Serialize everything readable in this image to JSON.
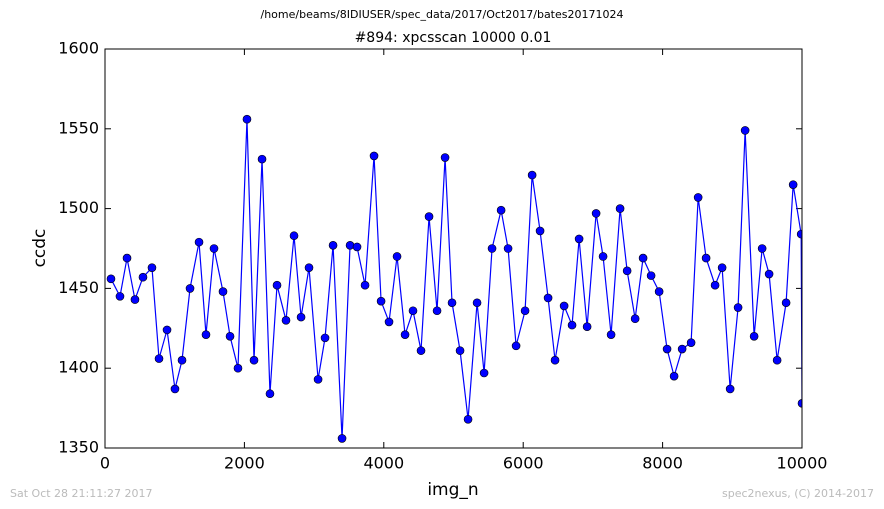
{
  "chart_data": {
    "type": "line",
    "title": "/home/beams/8IDIUSER/spec_data/2017/Oct2017/bates20171024",
    "subtitle": "#894: xpcsscan 10000 0.01",
    "x_label": "img_n",
    "y_label": "ccdc",
    "footer_left": "Sat Oct 28 21:11:27 2017",
    "footer_right": "spec2nexus, (C) 2014-2017",
    "color": "#0000ff",
    "marker": "circle",
    "x": [
      86,
      215,
      316,
      430,
      545,
      674,
      775,
      890,
      1004,
      1105,
      1220,
      1349,
      1449,
      1564,
      1693,
      1794,
      1908,
      2037,
      2138,
      2253,
      2367,
      2468,
      2597,
      2712,
      2813,
      2927,
      3057,
      3157,
      3272,
      3401,
      3516,
      3616,
      3731,
      3860,
      3961,
      4075,
      4190,
      4305,
      4419,
      4534,
      4649,
      4764,
      4879,
      4979,
      5094,
      5209,
      5338,
      5439,
      5553,
      5683,
      5783,
      5898,
      6027,
      6128,
      6242,
      6357,
      6457,
      6587,
      6701,
      6802,
      6917,
      7046,
      7146,
      7261,
      7390,
      7491,
      7606,
      7720,
      7835,
      7950,
      8064,
      8165,
      8280,
      8409,
      8510,
      8624,
      8753,
      8854,
      8969,
      9083,
      9184,
      9313,
      9428,
      9528,
      9643,
      9772,
      9873,
      9988,
      10000
    ],
    "values": [
      1456,
      1445,
      1469,
      1443,
      1457,
      1463,
      1406,
      1424,
      1387,
      1405,
      1450,
      1479,
      1421,
      1475,
      1448,
      1420,
      1400,
      1556,
      1405,
      1531,
      1384,
      1452,
      1430,
      1483,
      1432,
      1463,
      1393,
      1419,
      1477,
      1356,
      1477,
      1476,
      1452,
      1533,
      1442,
      1429,
      1470,
      1421,
      1436,
      1411,
      1495,
      1436,
      1532,
      1441,
      1411,
      1368,
      1441,
      1397,
      1475,
      1499,
      1475,
      1414,
      1436,
      1521,
      1486,
      1444,
      1405,
      1439,
      1427,
      1481,
      1426,
      1497,
      1470,
      1421,
      1500,
      1461,
      1431,
      1469,
      1458,
      1448,
      1412,
      1395,
      1412,
      1416,
      1507,
      1469,
      1452,
      1463,
      1387,
      1438,
      1549,
      1420,
      1475,
      1459,
      1405,
      1441,
      1515,
      1484,
      1378
    ],
    "xlim": [
      0,
      10000
    ],
    "xticks": [
      0,
      2000,
      4000,
      6000,
      8000,
      10000
    ],
    "ylim": [
      1350,
      1600
    ],
    "yticks": [
      1350,
      1400,
      1450,
      1500,
      1550,
      1600
    ],
    "grid": false
  }
}
